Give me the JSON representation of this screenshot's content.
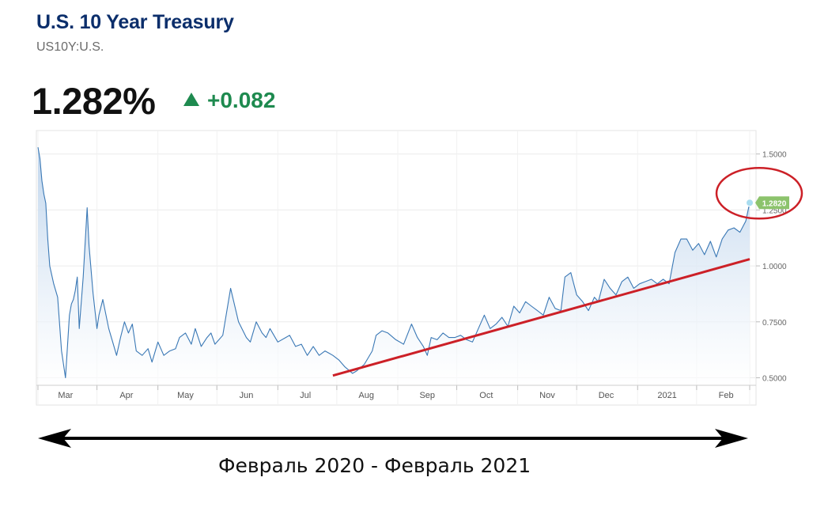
{
  "header": {
    "title": "U.S. 10 Year Treasury",
    "ticker": "US10Y:U.S.",
    "price": "1.282%",
    "change": "+0.082",
    "up_color": "#1e8a4f",
    "title_color": "#0b2e6b"
  },
  "chart_data": {
    "type": "area",
    "x_tick_labels": [
      "Mar",
      "Apr",
      "May",
      "Jun",
      "Jul",
      "Aug",
      "Sep",
      "Oct",
      "Nov",
      "Dec",
      "2021",
      "Feb"
    ],
    "y_tick_labels": [
      "1.5000",
      "1.2500",
      "1.0000",
      "0.7500",
      "0.5000"
    ],
    "ylim": [
      0.47,
      1.58
    ],
    "x": [
      0,
      1,
      2,
      3,
      4,
      5,
      6,
      8,
      10,
      12,
      14,
      16,
      17,
      18,
      19,
      20,
      21,
      23,
      25,
      26,
      28,
      30,
      31,
      33,
      36,
      38,
      40,
      42,
      44,
      46,
      48,
      50,
      53,
      56,
      58,
      61,
      64,
      67,
      70,
      72,
      75,
      78,
      80,
      83,
      86,
      88,
      90,
      94,
      98,
      102,
      106,
      108,
      111,
      114,
      116,
      118,
      122,
      126,
      128,
      131,
      134,
      137,
      140,
      143,
      146,
      148,
      150,
      153,
      156,
      160,
      162,
      166,
      170,
      172,
      175,
      178,
      182,
      186,
      190,
      193,
      196,
      198,
      200,
      203,
      206,
      209,
      212,
      215,
      218,
      221,
      224,
      227,
      230,
      233,
      236,
      239,
      242,
      245,
      248,
      251,
      254,
      257,
      260,
      263,
      266,
      268,
      271,
      274,
      277,
      280,
      283,
      285,
      288,
      291,
      294,
      297,
      300,
      303,
      306,
      309,
      312,
      315,
      318,
      321,
      324,
      327,
      330,
      333,
      336,
      339,
      342,
      345,
      348,
      351,
      354,
      357,
      360,
      362
    ],
    "y": [
      1.53,
      1.48,
      1.38,
      1.32,
      1.28,
      1.12,
      1.0,
      0.92,
      0.86,
      0.62,
      0.5,
      0.78,
      0.83,
      0.85,
      0.89,
      0.95,
      0.72,
      0.95,
      1.26,
      1.09,
      0.88,
      0.72,
      0.78,
      0.85,
      0.72,
      0.66,
      0.6,
      0.68,
      0.75,
      0.7,
      0.74,
      0.62,
      0.6,
      0.63,
      0.57,
      0.66,
      0.6,
      0.62,
      0.63,
      0.68,
      0.7,
      0.65,
      0.72,
      0.64,
      0.68,
      0.7,
      0.65,
      0.69,
      0.9,
      0.75,
      0.68,
      0.66,
      0.75,
      0.7,
      0.68,
      0.72,
      0.66,
      0.68,
      0.69,
      0.64,
      0.65,
      0.6,
      0.64,
      0.6,
      0.62,
      0.61,
      0.6,
      0.58,
      0.55,
      0.52,
      0.53,
      0.56,
      0.62,
      0.69,
      0.71,
      0.7,
      0.67,
      0.65,
      0.74,
      0.68,
      0.64,
      0.6,
      0.68,
      0.67,
      0.7,
      0.68,
      0.68,
      0.69,
      0.67,
      0.66,
      0.72,
      0.78,
      0.72,
      0.74,
      0.77,
      0.73,
      0.82,
      0.79,
      0.84,
      0.82,
      0.8,
      0.78,
      0.86,
      0.81,
      0.8,
      0.95,
      0.97,
      0.87,
      0.84,
      0.8,
      0.86,
      0.84,
      0.94,
      0.9,
      0.87,
      0.93,
      0.95,
      0.9,
      0.92,
      0.93,
      0.94,
      0.92,
      0.94,
      0.92,
      1.06,
      1.12,
      1.12,
      1.07,
      1.1,
      1.05,
      1.11,
      1.04,
      1.12,
      1.16,
      1.17,
      1.15,
      1.2,
      1.282
    ],
    "last_value_label": "1.2820",
    "trendline": {
      "from": [
        150,
        0.51
      ],
      "to": [
        362,
        1.03
      ]
    },
    "grid": true,
    "line_color": "#3a78b5",
    "fill_color": "#c9dcef",
    "trend_color": "#cc2027",
    "circle_color": "#cc2027",
    "label_bg_color": "#8cc36c"
  },
  "caption": {
    "text": "Февраль 2020 - Февраль 2021"
  }
}
